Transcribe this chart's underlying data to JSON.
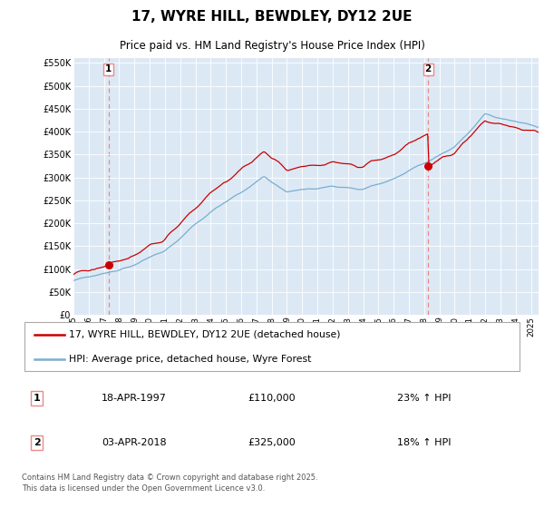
{
  "title": "17, WYRE HILL, BEWDLEY, DY12 2UE",
  "subtitle": "Price paid vs. HM Land Registry's House Price Index (HPI)",
  "legend_line1": "17, WYRE HILL, BEWDLEY, DY12 2UE (detached house)",
  "legend_line2": "HPI: Average price, detached house, Wyre Forest",
  "sale1_label": "1",
  "sale1_date": "18-APR-1997",
  "sale1_price": "£110,000",
  "sale1_hpi": "23% ↑ HPI",
  "sale1_year": 1997.29,
  "sale1_value": 110000,
  "sale2_label": "2",
  "sale2_date": "03-APR-2018",
  "sale2_price": "£325,000",
  "sale2_hpi": "18% ↑ HPI",
  "sale2_year": 2018.25,
  "sale2_value": 325000,
  "hpi_color": "#7aadcf",
  "price_color": "#cc0000",
  "marker_color": "#cc0000",
  "vline_color": "#ee8888",
  "background_color": "#ffffff",
  "plot_bg_color": "#dce9f5",
  "ylim": [
    0,
    560000
  ],
  "xlim_start": 1995.0,
  "xlim_end": 2025.5,
  "footer": "Contains HM Land Registry data © Crown copyright and database right 2025.\nThis data is licensed under the Open Government Licence v3.0."
}
